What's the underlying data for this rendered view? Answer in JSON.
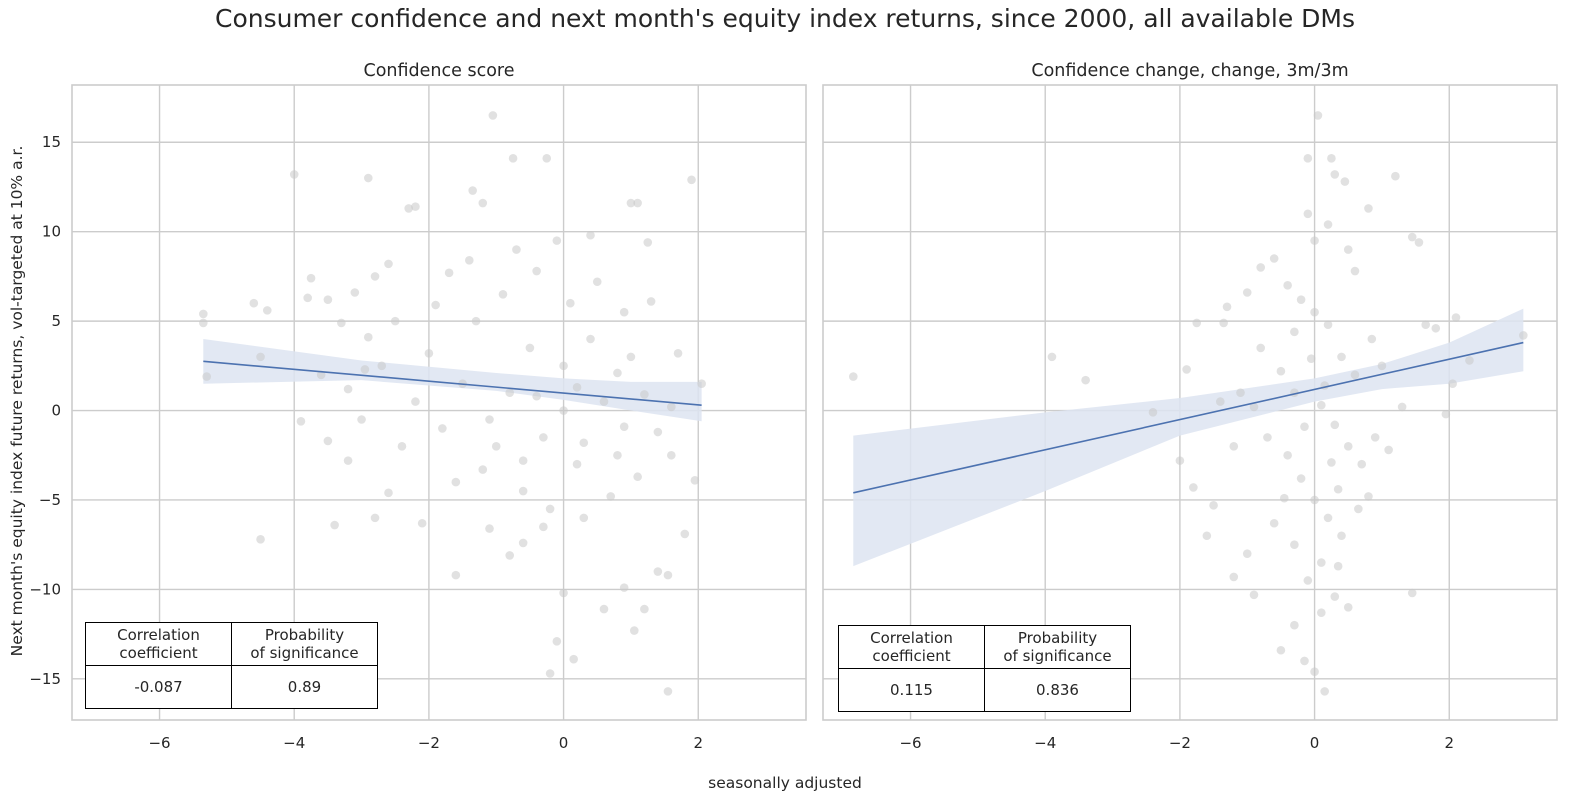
{
  "suptitle": "Consumer confidence and next month's equity index returns, since 2000, all available DMs",
  "ylabel": "Next month's equity index future returns, vol-targeted at 10% a.r.",
  "xlabel": "seasonally adjusted",
  "colors": {
    "points": "#c8c8c8",
    "line": "#4c72b0",
    "band": "#dde4f1",
    "grid": "#cccccc"
  },
  "chart_data": [
    {
      "type": "scatter",
      "title": "Confidence score",
      "xlim": [
        -7.3,
        3.6
      ],
      "ylim": [
        -17.3,
        18.2
      ],
      "xticks": [
        -6,
        -4,
        -2,
        0,
        2
      ],
      "yticks": [
        -15,
        -10,
        -5,
        0,
        5,
        10,
        15
      ],
      "x_tick_labels": [
        "−6",
        "−4",
        "−2",
        "0",
        "2"
      ],
      "y_tick_labels": [
        "−15",
        "−10",
        "−5",
        "0",
        "5",
        "10",
        "15"
      ],
      "grid": true,
      "regression_line": {
        "x": [
          -5.35,
          2.05
        ],
        "y": [
          2.75,
          0.3
        ]
      },
      "confidence_band": {
        "x": [
          -5.35,
          -3,
          -1,
          0,
          1,
          2.05
        ],
        "upper": [
          4.0,
          2.8,
          2.1,
          1.8,
          1.6,
          1.6
        ],
        "lower": [
          1.5,
          1.7,
          1.1,
          0.6,
          0.0,
          -0.6
        ]
      },
      "points_note": "approximate cloud of ~600 points",
      "points": [
        [
          -5.35,
          5.4
        ],
        [
          -5.35,
          4.9
        ],
        [
          -5.3,
          1.9
        ],
        [
          -4.6,
          6.0
        ],
        [
          -4.5,
          3.0
        ],
        [
          -4.4,
          5.6
        ],
        [
          -4.5,
          -7.2
        ],
        [
          -4.0,
          13.2
        ],
        [
          -3.9,
          -0.6
        ],
        [
          -3.8,
          6.3
        ],
        [
          -3.75,
          7.4
        ],
        [
          -3.6,
          2.0
        ],
        [
          -3.5,
          6.2
        ],
        [
          -3.5,
          -1.7
        ],
        [
          -3.4,
          -6.4
        ],
        [
          -3.3,
          4.9
        ],
        [
          -3.2,
          -2.8
        ],
        [
          -3.1,
          6.6
        ],
        [
          -2.95,
          2.3
        ],
        [
          -2.9,
          13.0
        ],
        [
          -2.8,
          7.5
        ],
        [
          -2.8,
          -6.0
        ],
        [
          -2.7,
          2.5
        ],
        [
          -2.6,
          -4.6
        ],
        [
          -2.5,
          5.0
        ],
        [
          -2.3,
          11.3
        ],
        [
          -2.2,
          11.4
        ],
        [
          -2.1,
          -6.3
        ],
        [
          -1.9,
          5.9
        ],
        [
          -1.7,
          7.7
        ],
        [
          -1.6,
          -9.2
        ],
        [
          -1.35,
          12.3
        ],
        [
          -1.2,
          11.6
        ],
        [
          -1.05,
          16.5
        ],
        [
          -0.75,
          14.1
        ],
        [
          -0.25,
          14.1
        ],
        [
          -1.1,
          -6.6
        ],
        [
          -0.8,
          -8.1
        ],
        [
          -0.6,
          -7.4
        ],
        [
          -0.3,
          -6.5
        ],
        [
          0.0,
          -10.2
        ],
        [
          -0.1,
          -12.9
        ],
        [
          -0.2,
          -14.7
        ],
        [
          0.15,
          -13.9
        ],
        [
          0.6,
          -11.1
        ],
        [
          0.9,
          -9.9
        ],
        [
          1.05,
          -12.3
        ],
        [
          1.2,
          -11.1
        ],
        [
          1.4,
          -9.0
        ],
        [
          1.55,
          -9.2
        ],
        [
          1.55,
          -15.7
        ],
        [
          1.9,
          12.9
        ],
        [
          1.0,
          11.6
        ],
        [
          1.1,
          11.6
        ],
        [
          1.25,
          9.4
        ],
        [
          2.05,
          1.5
        ],
        [
          1.8,
          -6.9
        ],
        [
          1.95,
          -3.9
        ],
        [
          1.7,
          3.2
        ],
        [
          1.6,
          -2.5
        ],
        [
          -1.0,
          -2.0
        ],
        [
          -0.8,
          1.0
        ],
        [
          -0.5,
          3.5
        ],
        [
          -0.3,
          -1.5
        ],
        [
          0.0,
          2.5
        ],
        [
          0.2,
          -3.0
        ],
        [
          0.4,
          4.0
        ],
        [
          0.6,
          0.5
        ],
        [
          0.8,
          -2.5
        ],
        [
          1.0,
          3.0
        ],
        [
          -1.5,
          1.5
        ],
        [
          -1.8,
          -1.0
        ],
        [
          -2.0,
          3.2
        ],
        [
          -1.3,
          5.0
        ],
        [
          -0.9,
          6.5
        ],
        [
          -0.4,
          7.8
        ],
        [
          0.1,
          6.0
        ],
        [
          0.5,
          7.2
        ],
        [
          0.9,
          5.5
        ],
        [
          1.3,
          6.1
        ],
        [
          -0.6,
          -4.5
        ],
        [
          -0.2,
          -5.5
        ],
        [
          0.3,
          -6.0
        ],
        [
          0.7,
          -4.8
        ],
        [
          1.1,
          -3.7
        ],
        [
          1.4,
          -1.2
        ],
        [
          -1.2,
          -3.3
        ],
        [
          -1.6,
          -4.0
        ],
        [
          -2.4,
          -2.0
        ],
        [
          -2.2,
          0.5
        ],
        [
          -0.7,
          9.0
        ],
        [
          -0.1,
          9.5
        ],
        [
          0.4,
          9.8
        ],
        [
          -1.4,
          8.4
        ],
        [
          -2.6,
          8.2
        ],
        [
          -3.0,
          -0.5
        ],
        [
          -3.2,
          1.2
        ],
        [
          -2.9,
          4.1
        ],
        [
          0.0,
          0.0
        ],
        [
          0.2,
          1.3
        ],
        [
          -0.4,
          0.8
        ],
        [
          0.8,
          2.1
        ],
        [
          1.2,
          0.9
        ],
        [
          1.6,
          0.2
        ],
        [
          -1.1,
          -0.5
        ],
        [
          -0.6,
          -2.8
        ],
        [
          0.3,
          -1.8
        ],
        [
          0.9,
          -0.9
        ]
      ]
    },
    {
      "type": "scatter",
      "title": "Confidence change, change, 3m/3m",
      "xlim": [
        -7.3,
        3.6
      ],
      "ylim": [
        -17.3,
        18.2
      ],
      "xticks": [
        -6,
        -4,
        -2,
        0,
        2
      ],
      "yticks": [
        -15,
        -10,
        -5,
        0,
        5,
        10,
        15
      ],
      "x_tick_labels": [
        "−6",
        "−4",
        "−2",
        "0",
        "2"
      ],
      "grid": true,
      "regression_line": {
        "x": [
          -6.85,
          3.1
        ],
        "y": [
          -4.6,
          3.8
        ]
      },
      "confidence_band": {
        "x": [
          -6.85,
          -4,
          -2,
          0,
          1,
          2,
          3.1
        ],
        "upper": [
          -1.4,
          -0.1,
          0.7,
          1.8,
          2.6,
          3.8,
          5.7
        ],
        "lower": [
          -8.7,
          -4.5,
          -1.4,
          0.5,
          1.2,
          1.5,
          2.2
        ]
      },
      "points_note": "approximate cloud of ~600 points",
      "points": [
        [
          -6.85,
          1.9
        ],
        [
          -3.9,
          3.0
        ],
        [
          -3.4,
          1.7
        ],
        [
          -2.4,
          -0.1
        ],
        [
          -2.0,
          -2.8
        ],
        [
          -1.9,
          2.3
        ],
        [
          -1.75,
          4.9
        ],
        [
          -1.35,
          4.9
        ],
        [
          -1.2,
          -9.3
        ],
        [
          -1.1,
          1.0
        ],
        [
          -0.9,
          -10.3
        ],
        [
          -0.5,
          -13.4
        ],
        [
          -0.3,
          -12.0
        ],
        [
          -0.15,
          -14.0
        ],
        [
          0.0,
          -14.6
        ],
        [
          0.1,
          -11.3
        ],
        [
          0.35,
          -8.7
        ],
        [
          0.5,
          -11.0
        ],
        [
          0.8,
          -4.8
        ],
        [
          1.2,
          13.1
        ],
        [
          1.45,
          9.7
        ],
        [
          1.55,
          9.4
        ],
        [
          1.45,
          -10.2
        ],
        [
          1.65,
          4.8
        ],
        [
          1.8,
          4.6
        ],
        [
          1.95,
          -0.2
        ],
        [
          2.05,
          1.5
        ],
        [
          2.1,
          5.2
        ],
        [
          2.3,
          2.8
        ],
        [
          3.1,
          4.2
        ],
        [
          0.05,
          16.5
        ],
        [
          -0.1,
          14.1
        ],
        [
          0.25,
          14.1
        ],
        [
          0.3,
          13.2
        ],
        [
          0.45,
          12.8
        ],
        [
          0.8,
          11.3
        ],
        [
          0.15,
          -15.7
        ],
        [
          -0.6,
          8.5
        ],
        [
          -0.4,
          7.0
        ],
        [
          -0.2,
          6.2
        ],
        [
          0.0,
          5.5
        ],
        [
          0.2,
          4.8
        ],
        [
          0.4,
          3.0
        ],
        [
          0.6,
          2.0
        ],
        [
          -0.8,
          3.5
        ],
        [
          -0.5,
          2.2
        ],
        [
          -0.3,
          1.0
        ],
        [
          0.1,
          0.3
        ],
        [
          0.3,
          -0.8
        ],
        [
          0.5,
          -2.0
        ],
        [
          0.7,
          -3.0
        ],
        [
          -0.7,
          -1.5
        ],
        [
          -0.4,
          -2.5
        ],
        [
          -0.2,
          -3.8
        ],
        [
          0.0,
          -5.0
        ],
        [
          0.2,
          -6.0
        ],
        [
          0.4,
          -7.0
        ],
        [
          -0.6,
          -6.3
        ],
        [
          -0.3,
          -7.5
        ],
        [
          0.1,
          -8.5
        ],
        [
          -0.1,
          -9.5
        ],
        [
          0.3,
          -10.4
        ],
        [
          -1.0,
          6.6
        ],
        [
          -1.3,
          5.8
        ],
        [
          -1.5,
          -5.3
        ],
        [
          -1.6,
          -7.0
        ],
        [
          -1.0,
          -8.0
        ],
        [
          0.9,
          -1.5
        ],
        [
          1.0,
          2.5
        ],
        [
          1.1,
          -2.2
        ],
        [
          0.6,
          7.8
        ],
        [
          -0.8,
          8.0
        ],
        [
          0.0,
          9.5
        ],
        [
          -0.1,
          11.0
        ],
        [
          0.2,
          10.4
        ],
        [
          -1.8,
          -4.3
        ],
        [
          -1.2,
          -2.0
        ],
        [
          -1.4,
          0.5
        ],
        [
          1.3,
          0.2
        ],
        [
          0.5,
          9.0
        ],
        [
          -0.3,
          4.4
        ],
        [
          -0.05,
          2.9
        ],
        [
          0.15,
          1.4
        ],
        [
          0.35,
          -4.4
        ],
        [
          -0.45,
          -4.9
        ],
        [
          0.65,
          -5.5
        ],
        [
          0.85,
          4.0
        ],
        [
          -0.9,
          0.2
        ],
        [
          -0.15,
          -0.9
        ],
        [
          0.25,
          -2.9
        ]
      ]
    }
  ],
  "stats_tables": [
    {
      "header": [
        "Correlation\ncoefficient",
        "Probability\nof significance"
      ],
      "values": [
        "-0.087",
        "0.89"
      ]
    },
    {
      "header": [
        "Correlation\ncoefficient",
        "Probability\nof significance"
      ],
      "values": [
        "0.115",
        "0.836"
      ]
    }
  ]
}
